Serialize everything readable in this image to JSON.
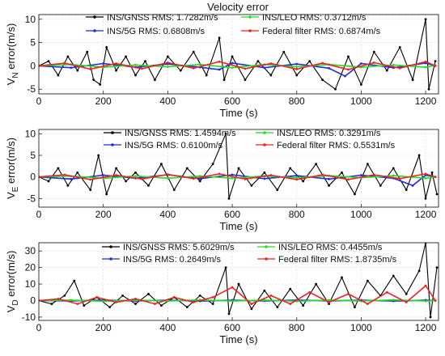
{
  "figure_title": "Velocity error",
  "colors": {
    "ins_gnss": "#000000",
    "ins_leo": "#22dd22",
    "ins_5g": "#1f2bd6",
    "federal": "#ee2222"
  },
  "chart_data": [
    {
      "type": "line",
      "panel": "VN",
      "title": "Velocity error",
      "xlabel": "Time (s)",
      "ylabel_main": "V",
      "ylabel_sub": "N",
      "ylabel_rest": " error(m/s)",
      "xlim": [
        0,
        1240
      ],
      "ylim": [
        -6,
        11
      ],
      "xticks": [
        0,
        200,
        400,
        600,
        800,
        1000,
        1200
      ],
      "yticks": [
        -5,
        0,
        5,
        10
      ],
      "grid": true,
      "legend_position": "top",
      "series": [
        {
          "key": "ins_gnss",
          "legend": "INS/GNSS RMS:  1.7282m/s",
          "x": [
            0,
            30,
            60,
            90,
            120,
            150,
            170,
            190,
            210,
            240,
            270,
            300,
            330,
            360,
            400,
            440,
            480,
            520,
            560,
            575,
            600,
            640,
            680,
            720,
            760,
            800,
            840,
            880,
            920,
            960,
            1000,
            1040,
            1080,
            1120,
            1160,
            1200,
            1210,
            1230
          ],
          "y": [
            0,
            1,
            -2,
            2,
            -1,
            3,
            -3,
            -4,
            4,
            -1,
            2,
            -2,
            1,
            -3,
            2,
            -1,
            3,
            -2,
            6,
            -3,
            2,
            -3,
            1,
            -2,
            3,
            -2,
            1,
            -3,
            -5,
            2,
            -4,
            3,
            -1,
            4,
            -3,
            10,
            -5,
            1
          ]
        },
        {
          "key": "ins_leo",
          "legend": "INS/LEO RMS:  0.3712m/s",
          "x": [
            0,
            100,
            200,
            300,
            400,
            500,
            600,
            700,
            800,
            900,
            1000,
            1100,
            1200,
            1230
          ],
          "y": [
            0,
            0.3,
            -0.3,
            0.2,
            -0.2,
            0.3,
            -0.4,
            0.3,
            -0.2,
            0.3,
            -0.3,
            0.2,
            -0.3,
            0.1
          ]
        },
        {
          "key": "ins_5g",
          "legend": "INS/5G RMS:  0.6808m/s",
          "x": [
            0,
            100,
            200,
            300,
            400,
            500,
            560,
            600,
            700,
            800,
            900,
            950,
            1000,
            1100,
            1200,
            1230
          ],
          "y": [
            0,
            -0.4,
            0.5,
            -0.3,
            0.4,
            -0.3,
            -0.8,
            0.6,
            -0.4,
            0.4,
            -0.5,
            -2.2,
            0.5,
            -0.4,
            0.6,
            0
          ]
        },
        {
          "key": "federal",
          "legend": "Federal filter RMS:  0.6874m/s",
          "x": [
            0,
            80,
            160,
            240,
            320,
            400,
            480,
            560,
            640,
            720,
            800,
            880,
            960,
            1040,
            1120,
            1200,
            1230
          ],
          "y": [
            0,
            0.6,
            -0.7,
            0.5,
            -0.6,
            0.7,
            -0.5,
            0.9,
            -0.6,
            0.5,
            -0.7,
            0.6,
            -0.8,
            0.7,
            -0.5,
            0.9,
            0
          ]
        }
      ]
    },
    {
      "type": "line",
      "panel": "VE",
      "title": "",
      "xlabel": "Time (s)",
      "ylabel_main": "V",
      "ylabel_sub": "E",
      "ylabel_rest": " error(m/s)",
      "xlim": [
        0,
        1240
      ],
      "ylim": [
        -7,
        11
      ],
      "xticks": [
        0,
        200,
        400,
        600,
        800,
        1000,
        1200
      ],
      "yticks": [
        -5,
        0,
        5,
        10
      ],
      "grid": true,
      "legend_position": "top",
      "series": [
        {
          "key": "ins_gnss",
          "legend": "INS/GNSS RMS:  1.4594m/s",
          "x": [
            0,
            30,
            60,
            90,
            120,
            160,
            185,
            210,
            240,
            270,
            300,
            340,
            380,
            420,
            460,
            500,
            540,
            580,
            590,
            620,
            660,
            700,
            740,
            780,
            820,
            860,
            900,
            940,
            980,
            1020,
            1060,
            1100,
            1140,
            1180,
            1200,
            1220,
            1235
          ],
          "y": [
            0,
            -1,
            2,
            -2,
            1,
            -3,
            5,
            -4,
            2,
            -1,
            1,
            -2,
            3,
            -3,
            2,
            -1,
            3,
            10,
            -5,
            2,
            -2,
            1,
            -3,
            2,
            -1,
            3,
            -2,
            1,
            -4,
            3,
            -2,
            2,
            -3,
            5,
            -5,
            1,
            -4
          ]
        },
        {
          "key": "ins_leo",
          "legend": "INS/LEO RMS:  0.3291m/s",
          "x": [
            0,
            100,
            200,
            300,
            400,
            500,
            600,
            700,
            800,
            900,
            1000,
            1100,
            1200,
            1230
          ],
          "y": [
            0,
            0.2,
            -0.3,
            0.2,
            -0.3,
            0.2,
            -0.3,
            0.2,
            -0.2,
            0.3,
            -0.2,
            0.3,
            -0.3,
            0
          ]
        },
        {
          "key": "ins_5g",
          "legend": "INS/5G RMS:  0.6100m/s",
          "x": [
            0,
            100,
            200,
            300,
            400,
            500,
            600,
            700,
            800,
            900,
            1000,
            1100,
            1160,
            1200,
            1230
          ],
          "y": [
            0,
            -0.5,
            0.4,
            -0.3,
            0.5,
            -0.4,
            0.5,
            -0.4,
            0.3,
            -0.5,
            0.4,
            -0.3,
            -2,
            0.4,
            0
          ]
        },
        {
          "key": "federal",
          "legend": "Federal filter RMS:  0.5531m/s",
          "x": [
            0,
            80,
            160,
            240,
            320,
            400,
            480,
            560,
            640,
            720,
            800,
            880,
            960,
            1040,
            1120,
            1200,
            1230
          ],
          "y": [
            0,
            0.5,
            -0.6,
            0.4,
            -0.5,
            0.6,
            -0.4,
            0.7,
            -0.5,
            0.4,
            -0.6,
            0.5,
            -0.6,
            0.5,
            -0.4,
            0.7,
            0
          ]
        }
      ]
    },
    {
      "type": "line",
      "panel": "VD",
      "title": "",
      "xlabel": "Time (s)",
      "ylabel_main": "V",
      "ylabel_sub": "D",
      "ylabel_rest": " error(m/s)",
      "xlim": [
        0,
        1240
      ],
      "ylim": [
        -12,
        35
      ],
      "xticks": [
        0,
        200,
        400,
        600,
        800,
        1000,
        1200
      ],
      "yticks": [
        -10,
        0,
        10,
        20,
        30
      ],
      "grid": true,
      "legend_position": "top",
      "series": [
        {
          "key": "ins_gnss",
          "legend": "INS/GNSS RMS:  5.6029m/s",
          "x": [
            0,
            40,
            80,
            110,
            140,
            180,
            220,
            260,
            300,
            340,
            380,
            420,
            460,
            500,
            540,
            580,
            590,
            620,
            660,
            700,
            740,
            780,
            820,
            860,
            900,
            940,
            980,
            1020,
            1060,
            1100,
            1140,
            1180,
            1200,
            1215,
            1235
          ],
          "y": [
            0,
            -2,
            3,
            12,
            -3,
            2,
            -4,
            3,
            -2,
            4,
            -3,
            2,
            -4,
            3,
            -2,
            20,
            -8,
            10,
            -5,
            6,
            -4,
            7,
            -3,
            10,
            -2,
            14,
            -4,
            12,
            3,
            15,
            4,
            18,
            35,
            -10,
            20
          ]
        },
        {
          "key": "ins_leo",
          "legend": "INS/LEO RMS:  0.4455m/s",
          "x": [
            0,
            100,
            200,
            300,
            400,
            500,
            600,
            700,
            800,
            900,
            1000,
            1100,
            1200,
            1230
          ],
          "y": [
            0,
            0.3,
            -0.4,
            0.3,
            -0.3,
            0.4,
            -0.3,
            0.3,
            -0.4,
            0.3,
            -0.3,
            0.4,
            -0.3,
            0
          ]
        },
        {
          "key": "ins_5g",
          "legend": "INS/5G RMS:  0.2649m/s",
          "x": [
            0,
            100,
            200,
            300,
            400,
            500,
            600,
            700,
            800,
            900,
            1000,
            1100,
            1200,
            1230
          ],
          "y": [
            0,
            -0.2,
            0.3,
            -0.2,
            0.2,
            -0.3,
            0.2,
            -0.2,
            0.3,
            -0.2,
            0.2,
            -0.3,
            0.2,
            0
          ]
        },
        {
          "key": "federal",
          "legend": "Federal filter RMS:  1.8735m/s",
          "x": [
            0,
            60,
            120,
            180,
            240,
            300,
            360,
            420,
            480,
            540,
            600,
            660,
            720,
            780,
            840,
            900,
            960,
            1020,
            1080,
            1140,
            1200,
            1230
          ],
          "y": [
            0,
            1,
            -2,
            2,
            -1,
            1,
            -2,
            2,
            -1,
            2,
            8,
            -2,
            3,
            -2,
            5,
            -1,
            4,
            -2,
            5,
            -1,
            9,
            0
          ]
        }
      ]
    }
  ]
}
